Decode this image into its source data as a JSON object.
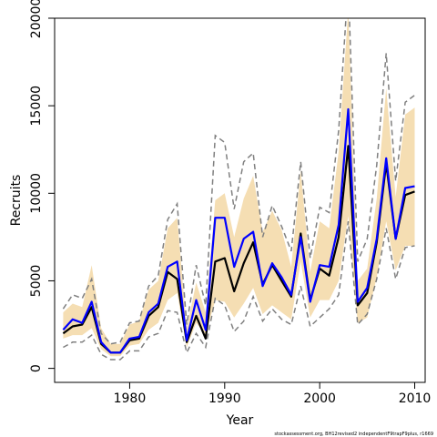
{
  "chart_data": {
    "type": "line",
    "xlabel": "Year",
    "ylabel": "Recruits",
    "xlim": [
      1972.1,
      2011.1
    ],
    "ylim": [
      -800,
      20000
    ],
    "x_ticks": [
      1980,
      1990,
      2000,
      2010
    ],
    "y_ticks": [
      0,
      5000,
      10000,
      15000,
      20000
    ],
    "x_tick_labels": [
      "1980",
      "1990",
      "2000",
      "2010"
    ],
    "y_tick_labels": [
      "0",
      "5000",
      "10000",
      "15000",
      "20000"
    ],
    "years": [
      1973,
      1974,
      1975,
      1976,
      1977,
      1978,
      1979,
      1980,
      1981,
      1982,
      1983,
      1984,
      1985,
      1986,
      1987,
      1988,
      1989,
      1990,
      1991,
      1992,
      1993,
      1994,
      1995,
      1996,
      1997,
      1998,
      1999,
      2000,
      2001,
      2002,
      2003,
      2004,
      2005,
      2006,
      2007,
      2008,
      2009,
      2010
    ],
    "band": {
      "color": "#f5deb3",
      "lower": [
        1700,
        1900,
        1900,
        2300,
        1100,
        700,
        700,
        1300,
        1400,
        2200,
        2600,
        3900,
        4300,
        1200,
        2600,
        1900,
        3900,
        3800,
        2900,
        3700,
        4600,
        3100,
        3600,
        3200,
        2800,
        6100,
        2900,
        3900,
        3900,
        5000,
        8700,
        2600,
        2900,
        5200,
        8400,
        5600,
        7000,
        7000
      ],
      "upper": [
        3200,
        3700,
        3500,
        5900,
        2300,
        1400,
        1400,
        2500,
        2700,
        4500,
        5000,
        8000,
        8600,
        2300,
        4900,
        3200,
        9600,
        10000,
        7500,
        9700,
        11000,
        7800,
        9000,
        7900,
        5800,
        11300,
        5500,
        8400,
        8000,
        12400,
        20500,
        5000,
        5700,
        9700,
        16000,
        9800,
        14500,
        14900
      ]
    },
    "series": [
      {
        "values": [
          2000,
          2400,
          2500,
          3500,
          1400,
          900,
          900,
          1600,
          1700,
          3000,
          3500,
          5500,
          5100,
          1500,
          3000,
          1700,
          6100,
          6300,
          4400,
          6000,
          7200,
          4800,
          5900,
          5000,
          4100,
          7700,
          3900,
          5700,
          5300,
          7500,
          12700,
          3600,
          4300,
          7200,
          11700,
          7400,
          9900,
          10100
        ],
        "color": "#000000"
      },
      {
        "values": [
          2200,
          2800,
          2600,
          3800,
          1500,
          900,
          900,
          1700,
          1800,
          3200,
          3700,
          5800,
          6100,
          1600,
          3900,
          2200,
          8600,
          8600,
          5800,
          7400,
          7800,
          4700,
          6000,
          5200,
          4200,
          7500,
          3800,
          5900,
          5800,
          8200,
          14800,
          3800,
          4600,
          7400,
          12000,
          7400,
          10300,
          10400
        ],
        "color": "#0000ff"
      }
    ],
    "dashed": [
      {
        "values": [
          3400,
          4200,
          4000,
          5100,
          2000,
          1400,
          1500,
          2600,
          2700,
          4700,
          5300,
          8500,
          9400,
          2500,
          5900,
          3600,
          13300,
          12900,
          9100,
          11800,
          12300,
          7500,
          9300,
          8100,
          6700,
          11800,
          6300,
          9200,
          8900,
          13600,
          22000,
          6100,
          7400,
          11600,
          18000,
          10700,
          15200,
          15600
        ],
        "color": "#808080"
      },
      {
        "values": [
          1200,
          1500,
          1500,
          1900,
          800,
          500,
          500,
          1000,
          1000,
          1800,
          2000,
          3300,
          3200,
          900,
          2000,
          1200,
          4000,
          3600,
          2100,
          2700,
          4100,
          2700,
          3400,
          2800,
          2500,
          4700,
          2400,
          2900,
          3400,
          4200,
          8400,
          2500,
          3100,
          5100,
          8000,
          5100,
          6900,
          7000
        ],
        "color": "#808080"
      }
    ],
    "grid": false,
    "legend": "none"
  },
  "footer": "stockassessment.org, BH12revised2 independentF9trapF9plus, r1669"
}
